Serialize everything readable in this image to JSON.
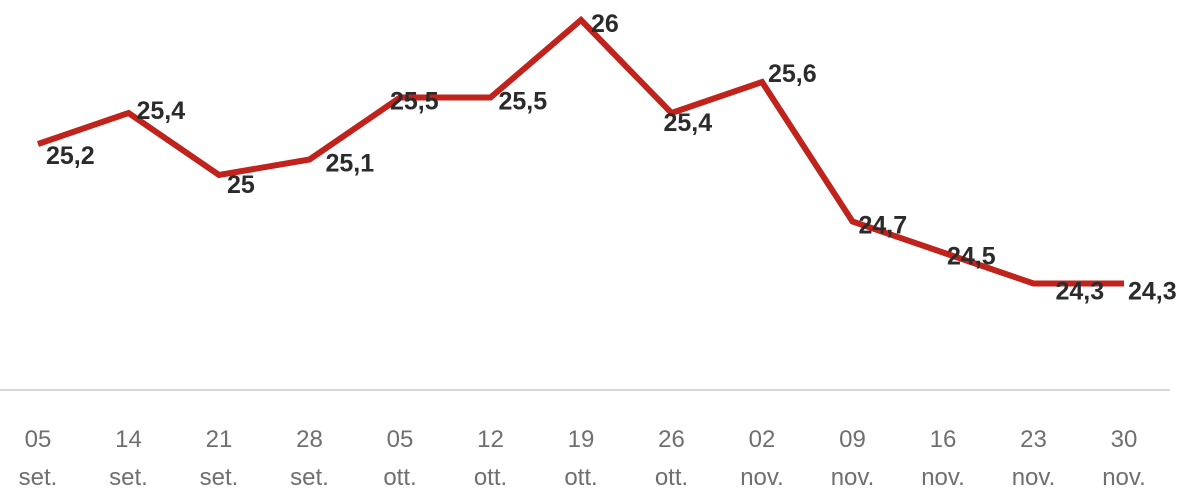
{
  "chart_data": {
    "type": "line",
    "categories": [
      [
        "05",
        "set."
      ],
      [
        "14",
        "set."
      ],
      [
        "21",
        "set."
      ],
      [
        "28",
        "set."
      ],
      [
        "05",
        "ott."
      ],
      [
        "12",
        "ott."
      ],
      [
        "19",
        "ott."
      ],
      [
        "26",
        "ott."
      ],
      [
        "02",
        "nov."
      ],
      [
        "09",
        "nov."
      ],
      [
        "16",
        "nov."
      ],
      [
        "23",
        "nov."
      ],
      [
        "30",
        "nov."
      ]
    ],
    "values": [
      25.2,
      25.4,
      25,
      25.1,
      25.5,
      25.5,
      26,
      25.4,
      25.6,
      24.7,
      24.5,
      24.3,
      24.3
    ],
    "data_labels": [
      "25,2",
      "25,4",
      "25",
      "25,1",
      "25,5",
      "25,5",
      "26",
      "25,4",
      "25,6",
      "24,7",
      "24,5",
      "24,3",
      "24,3"
    ],
    "series_color": "#c0221c",
    "axis_color": "#d9d9d9",
    "title": "",
    "xlabel": "",
    "ylabel": "",
    "grid": false,
    "legend": "none"
  }
}
